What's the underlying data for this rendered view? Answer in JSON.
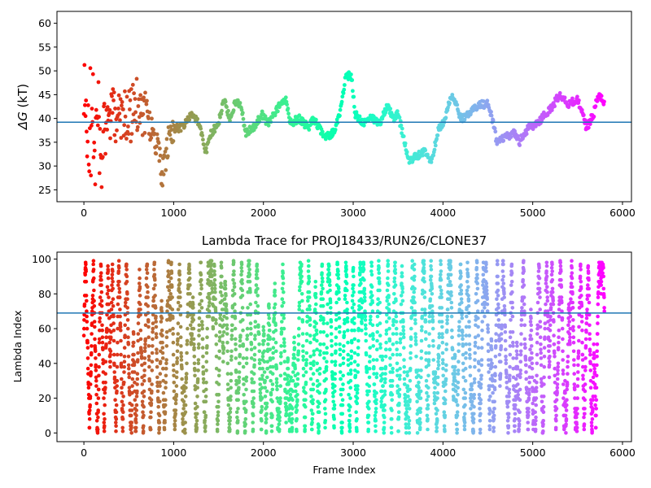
{
  "chart_data": [
    {
      "type": "scatter",
      "title": "",
      "xlabel": "",
      "ylabel": "ΔG (kT)",
      "ylabel_symbol": "ΔG",
      "ylabel_unit": " (kT)",
      "xlim": [
        -300,
        6100
      ],
      "ylim": [
        22.5,
        62.5
      ],
      "xticks": [
        0,
        1000,
        2000,
        3000,
        4000,
        5000,
        6000
      ],
      "yticks": [
        25,
        30,
        35,
        40,
        45,
        50,
        55,
        60
      ],
      "hline": 39.2,
      "hline_color": "#1f77b4",
      "colormap": "rainbow (red at frame 0 → violet at last frame)",
      "x_range": [
        0,
        5800
      ],
      "grid": false,
      "legend": "none",
      "trend_points": [
        [
          0,
          40
        ],
        [
          100,
          38
        ],
        [
          200,
          36
        ],
        [
          300,
          40
        ],
        [
          400,
          42
        ],
        [
          500,
          40
        ],
        [
          600,
          43
        ],
        [
          700,
          41
        ],
        [
          800,
          35
        ],
        [
          880,
          28
        ],
        [
          950,
          36
        ],
        [
          1000,
          38
        ],
        [
          1100,
          38
        ],
        [
          1200,
          41
        ],
        [
          1280,
          39
        ],
        [
          1360,
          33
        ],
        [
          1420,
          37
        ],
        [
          1500,
          39
        ],
        [
          1560,
          44
        ],
        [
          1620,
          40
        ],
        [
          1700,
          44
        ],
        [
          1760,
          42
        ],
        [
          1800,
          37
        ],
        [
          1900,
          38
        ],
        [
          1980,
          41
        ],
        [
          2050,
          39
        ],
        [
          2150,
          42
        ],
        [
          2250,
          44
        ],
        [
          2300,
          39
        ],
        [
          2400,
          40
        ],
        [
          2500,
          38
        ],
        [
          2560,
          40
        ],
        [
          2620,
          38
        ],
        [
          2700,
          36
        ],
        [
          2780,
          37
        ],
        [
          2850,
          41
        ],
        [
          2920,
          49
        ],
        [
          2980,
          49
        ],
        [
          3020,
          41
        ],
        [
          3100,
          39
        ],
        [
          3200,
          40
        ],
        [
          3300,
          39
        ],
        [
          3380,
          43
        ],
        [
          3450,
          40
        ],
        [
          3500,
          41
        ],
        [
          3560,
          36
        ],
        [
          3620,
          31
        ],
        [
          3700,
          32
        ],
        [
          3800,
          33
        ],
        [
          3880,
          31
        ],
        [
          3950,
          38
        ],
        [
          4000,
          39
        ],
        [
          4100,
          45
        ],
        [
          4200,
          40
        ],
        [
          4300,
          41
        ],
        [
          4400,
          43
        ],
        [
          4500,
          43
        ],
        [
          4560,
          39
        ],
        [
          4600,
          35
        ],
        [
          4700,
          36
        ],
        [
          4800,
          37
        ],
        [
          4850,
          35
        ],
        [
          4950,
          38
        ],
        [
          5050,
          39
        ],
        [
          5100,
          40
        ],
        [
          5200,
          42
        ],
        [
          5300,
          45
        ],
        [
          5400,
          43
        ],
        [
          5500,
          44
        ],
        [
          5600,
          38
        ],
        [
          5680,
          41
        ],
        [
          5730,
          45
        ],
        [
          5800,
          43
        ]
      ]
    },
    {
      "type": "scatter",
      "title": "Lambda Trace for PROJ18433/RUN26/CLONE37",
      "xlabel": "Frame Index",
      "ylabel": "Lambda Index",
      "xlim": [
        -300,
        6100
      ],
      "ylim": [
        -5,
        104
      ],
      "xticks": [
        0,
        1000,
        2000,
        3000,
        4000,
        5000,
        6000
      ],
      "yticks": [
        0,
        20,
        40,
        60,
        80,
        100
      ],
      "hline": 69,
      "hline_color": "#1f77b4",
      "colormap": "rainbow (red at frame 0 → violet at last frame)",
      "x_range": [
        0,
        5800
      ],
      "lambda_range": [
        0,
        99
      ],
      "grid": false,
      "legend": "none"
    }
  ]
}
